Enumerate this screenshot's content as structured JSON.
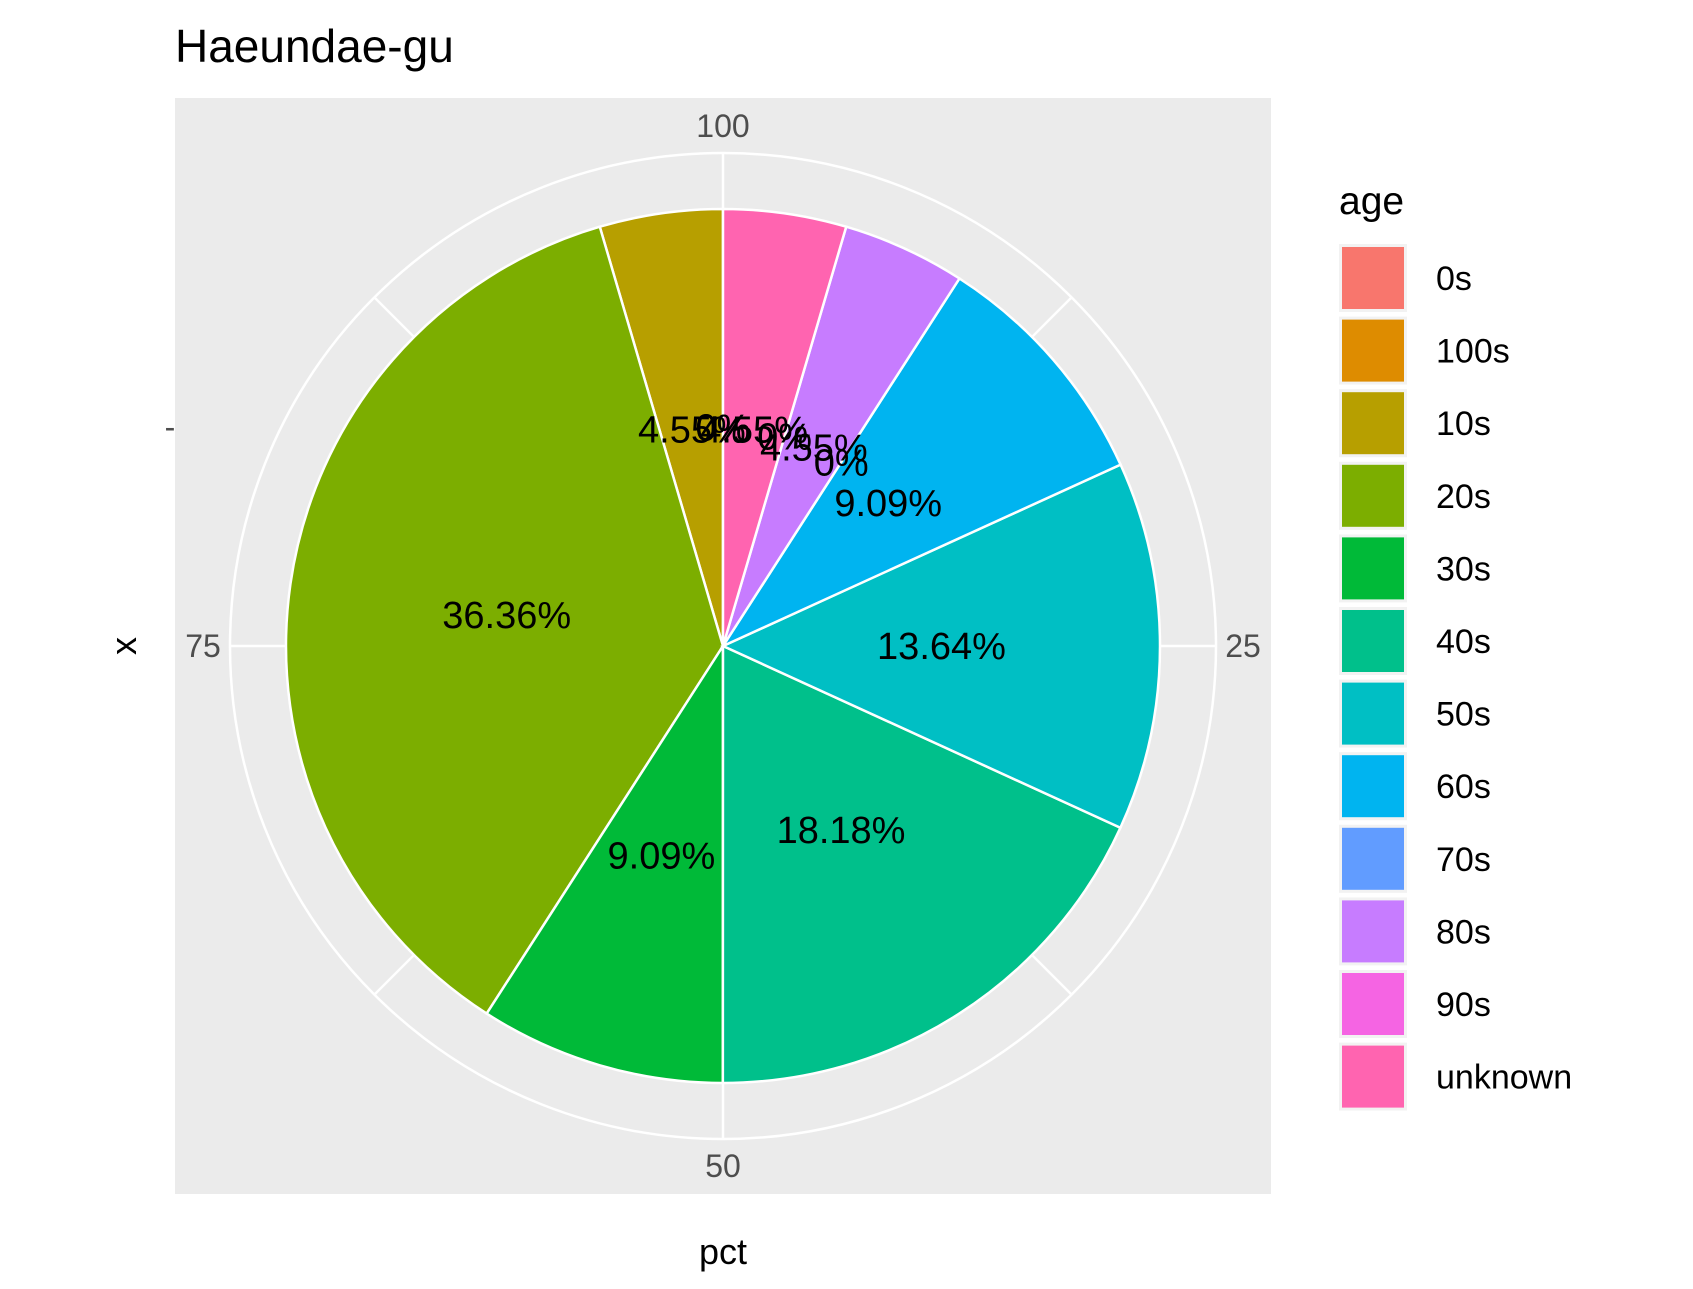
{
  "chart_data": {
    "type": "pie",
    "title": "Haeundae-gu",
    "xlabel": "pct",
    "ylabel": "x",
    "y_tick_label": "-",
    "theta_ticks": [
      "100",
      "25",
      "50",
      "75"
    ],
    "legend_title": "age",
    "legend_position": "right",
    "grid": true,
    "slices": [
      {
        "label": "0s",
        "value": 0,
        "display": "0%",
        "color": "#F8766D"
      },
      {
        "label": "100s",
        "value": 0,
        "display": "0%",
        "color": "#DE8C00"
      },
      {
        "label": "10s",
        "value": 4.55,
        "display": "4.55%",
        "color": "#B79F00"
      },
      {
        "label": "20s",
        "value": 36.36,
        "display": "36.36%",
        "color": "#7CAE00"
      },
      {
        "label": "30s",
        "value": 9.09,
        "display": "9.09%",
        "color": "#00BA38"
      },
      {
        "label": "40s",
        "value": 18.18,
        "display": "18.18%",
        "color": "#00C08B"
      },
      {
        "label": "50s",
        "value": 13.64,
        "display": "13.64%",
        "color": "#00BFC4"
      },
      {
        "label": "60s",
        "value": 9.09,
        "display": "9.09%",
        "color": "#00B4F0"
      },
      {
        "label": "70s",
        "value": 0,
        "display": "0%",
        "color": "#619CFF"
      },
      {
        "label": "80s",
        "value": 4.55,
        "display": "4.55%",
        "color": "#C77CFF"
      },
      {
        "label": "90s",
        "value": 0,
        "display": "0%",
        "color": "#F564E3"
      },
      {
        "label": "unknown",
        "value": 4.55,
        "display": "4.55%",
        "color": "#FF64B0"
      }
    ]
  }
}
